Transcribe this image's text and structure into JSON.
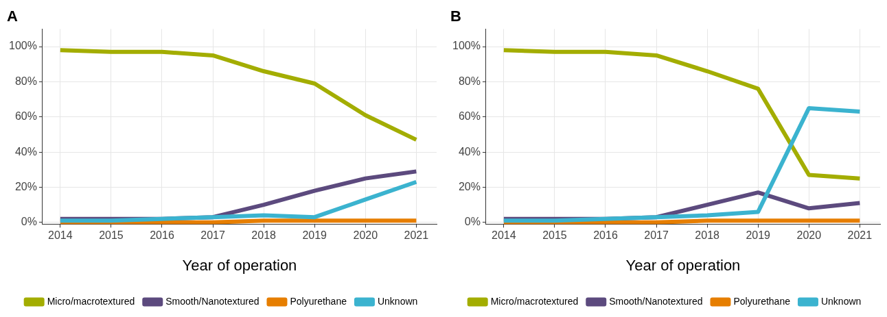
{
  "chart_data": [
    {
      "type": "line",
      "title": "A",
      "xlabel": "Year of operation",
      "x": [
        2014,
        2015,
        2016,
        2017,
        2018,
        2019,
        2020,
        2021
      ],
      "xlim": [
        2013.65,
        2021.4
      ],
      "xticks": [
        2014,
        2015,
        2016,
        2017,
        2018,
        2019,
        2020,
        2021
      ],
      "ylim": [
        -1,
        110
      ],
      "yticks": [
        {
          "value": 0,
          "label": "0%"
        },
        {
          "value": 20,
          "label": "20%"
        },
        {
          "value": 40,
          "label": "40%"
        },
        {
          "value": 60,
          "label": "60%"
        },
        {
          "value": 80,
          "label": "80%"
        },
        {
          "value": 100,
          "label": "100%"
        }
      ],
      "grid": true,
      "legend": "bottom",
      "marker": "none",
      "line_style": "solid",
      "series": [
        {
          "name": "Micro/macrotextured",
          "color": "#a3ad00",
          "values": [
            98,
            97,
            97,
            95,
            86,
            79,
            61,
            47
          ]
        },
        {
          "name": "Smooth/Nanotextured",
          "color": "#5c4a7e",
          "values": [
            2,
            2,
            2,
            3,
            10,
            18,
            25,
            29
          ]
        },
        {
          "name": "Polyurethane",
          "color": "#e67e00",
          "values": [
            0,
            0,
            0,
            0,
            1,
            1,
            1,
            1
          ]
        },
        {
          "name": "Unknown",
          "color": "#3bb3cf",
          "values": [
            1,
            1,
            2,
            3,
            4,
            3,
            13,
            23
          ]
        }
      ]
    },
    {
      "type": "line",
      "title": "B",
      "xlabel": "Year of operation",
      "x": [
        2014,
        2015,
        2016,
        2017,
        2018,
        2019,
        2020,
        2021
      ],
      "xlim": [
        2013.65,
        2021.4
      ],
      "xticks": [
        2014,
        2015,
        2016,
        2017,
        2018,
        2019,
        2020,
        2021
      ],
      "ylim": [
        -1,
        110
      ],
      "yticks": [
        {
          "value": 0,
          "label": "0%"
        },
        {
          "value": 20,
          "label": "20%"
        },
        {
          "value": 40,
          "label": "40%"
        },
        {
          "value": 60,
          "label": "60%"
        },
        {
          "value": 80,
          "label": "80%"
        },
        {
          "value": 100,
          "label": "100%"
        }
      ],
      "grid": true,
      "legend": "bottom",
      "marker": "none",
      "line_style": "solid",
      "series": [
        {
          "name": "Micro/macrotextured",
          "color": "#a3ad00",
          "values": [
            98,
            97,
            97,
            95,
            86,
            76,
            27,
            25
          ]
        },
        {
          "name": "Smooth/Nanotextured",
          "color": "#5c4a7e",
          "values": [
            2,
            2,
            2,
            3,
            10,
            17,
            8,
            11
          ]
        },
        {
          "name": "Polyurethane",
          "color": "#e67e00",
          "values": [
            0,
            0,
            0,
            0,
            1,
            1,
            1,
            1
          ]
        },
        {
          "name": "Unknown",
          "color": "#3bb3cf",
          "values": [
            1,
            1,
            2,
            3,
            4,
            6,
            65,
            63
          ]
        }
      ]
    }
  ]
}
